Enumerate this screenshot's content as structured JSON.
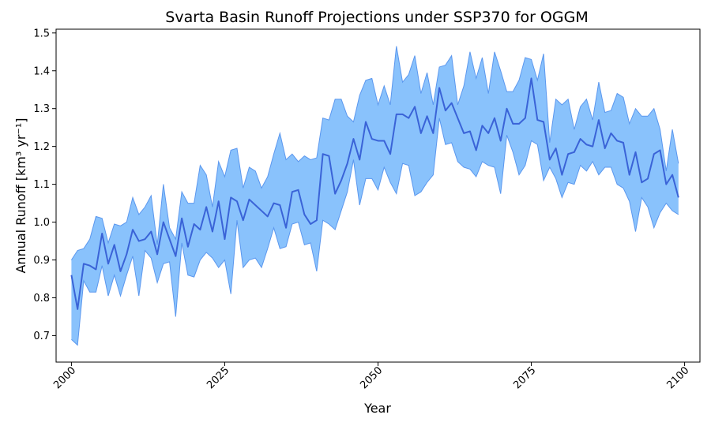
{
  "chart_data": {
    "type": "line",
    "title": "Svarta Basin Runoff Projections under SSP370 for OGGM",
    "xlabel": "Year",
    "ylabel": "Annual Runoff [km³ yr⁻¹]",
    "xlim": [
      1997.5,
      2102.5
    ],
    "ylim": [
      0.63,
      1.51
    ],
    "x_ticks": [
      2000,
      2025,
      2050,
      2075,
      2100
    ],
    "y_ticks": [
      0.7,
      0.8,
      0.9,
      1.0,
      1.1,
      1.2,
      1.3,
      1.4,
      1.5
    ],
    "x_tick_labels": [
      "2000",
      "2025",
      "2050",
      "2075",
      "2100"
    ],
    "y_tick_labels": [
      "0.7",
      "0.8",
      "0.9",
      "1.0",
      "1.1",
      "1.2",
      "1.3",
      "1.4",
      "1.5"
    ],
    "grid": false,
    "legend": "none",
    "colors": {
      "band": "#89c2fc",
      "band_edge": "#5b97ee",
      "line": "#3a63d7"
    },
    "x": [
      2000,
      2001,
      2002,
      2003,
      2004,
      2005,
      2006,
      2007,
      2008,
      2009,
      2010,
      2011,
      2012,
      2013,
      2014,
      2015,
      2016,
      2017,
      2018,
      2019,
      2020,
      2021,
      2022,
      2023,
      2024,
      2025,
      2026,
      2027,
      2028,
      2029,
      2030,
      2031,
      2032,
      2033,
      2034,
      2035,
      2036,
      2037,
      2038,
      2039,
      2040,
      2041,
      2042,
      2043,
      2044,
      2045,
      2046,
      2047,
      2048,
      2049,
      2050,
      2051,
      2052,
      2053,
      2054,
      2055,
      2056,
      2057,
      2058,
      2059,
      2060,
      2061,
      2062,
      2063,
      2064,
      2065,
      2066,
      2067,
      2068,
      2069,
      2070,
      2071,
      2072,
      2073,
      2074,
      2075,
      2076,
      2077,
      2078,
      2079,
      2080,
      2081,
      2082,
      2083,
      2084,
      2085,
      2086,
      2087,
      2088,
      2089,
      2090,
      2091,
      2092,
      2093,
      2094,
      2095,
      2096,
      2097,
      2098,
      2099
    ],
    "series": [
      {
        "name": "",
        "values": [
          0.86,
          0.77,
          0.89,
          0.885,
          0.875,
          0.97,
          0.89,
          0.94,
          0.87,
          0.915,
          0.98,
          0.95,
          0.955,
          0.975,
          0.915,
          1.0,
          0.955,
          0.91,
          1.01,
          0.935,
          0.995,
          0.98,
          1.04,
          0.975,
          1.055,
          0.955,
          1.065,
          1.055,
          1.005,
          1.06,
          1.045,
          1.03,
          1.015,
          1.05,
          1.045,
          0.985,
          1.08,
          1.085,
          1.02,
          0.995,
          1.005,
          1.18,
          1.175,
          1.075,
          1.11,
          1.155,
          1.22,
          1.165,
          1.265,
          1.22,
          1.215,
          1.215,
          1.18,
          1.285,
          1.285,
          1.275,
          1.305,
          1.235,
          1.28,
          1.235,
          1.355,
          1.295,
          1.315,
          1.275,
          1.235,
          1.24,
          1.19,
          1.255,
          1.235,
          1.275,
          1.215,
          1.3,
          1.26,
          1.26,
          1.275,
          1.38,
          1.27,
          1.265,
          1.165,
          1.195,
          1.125,
          1.18,
          1.185,
          1.22,
          1.205,
          1.2,
          1.27,
          1.195,
          1.235,
          1.215,
          1.21,
          1.125,
          1.185,
          1.105,
          1.115,
          1.18,
          1.19,
          1.1,
          1.125,
          1.065
        ]
      }
    ],
    "lower": [
      0.69,
      0.675,
      0.845,
      0.815,
      0.815,
      0.885,
      0.805,
      0.86,
      0.805,
      0.86,
      0.91,
      0.805,
      0.925,
      0.905,
      0.84,
      0.89,
      0.895,
      0.75,
      0.945,
      0.86,
      0.855,
      0.9,
      0.92,
      0.905,
      0.88,
      0.9,
      0.81,
      1.005,
      0.88,
      0.9,
      0.905,
      0.88,
      0.93,
      0.985,
      0.93,
      0.935,
      0.995,
      1.0,
      0.94,
      0.945,
      0.87,
      1.005,
      0.995,
      0.98,
      1.03,
      1.08,
      1.165,
      1.045,
      1.115,
      1.115,
      1.085,
      1.145,
      1.105,
      1.075,
      1.155,
      1.15,
      1.07,
      1.08,
      1.105,
      1.125,
      1.275,
      1.205,
      1.21,
      1.16,
      1.145,
      1.14,
      1.12,
      1.16,
      1.15,
      1.145,
      1.075,
      1.23,
      1.185,
      1.125,
      1.15,
      1.215,
      1.205,
      1.11,
      1.145,
      1.115,
      1.065,
      1.105,
      1.1,
      1.15,
      1.135,
      1.16,
      1.125,
      1.145,
      1.145,
      1.1,
      1.09,
      1.055,
      0.975,
      1.065,
      1.04,
      0.985,
      1.025,
      1.05,
      1.03,
      1.02
    ],
    "upper": [
      0.9,
      0.925,
      0.93,
      0.955,
      1.015,
      1.01,
      0.945,
      0.995,
      0.99,
      1.0,
      1.065,
      1.02,
      1.04,
      1.07,
      0.94,
      1.1,
      0.985,
      0.955,
      1.08,
      1.05,
      1.05,
      1.15,
      1.125,
      1.04,
      1.16,
      1.12,
      1.19,
      1.195,
      1.09,
      1.145,
      1.135,
      1.09,
      1.12,
      1.18,
      1.235,
      1.165,
      1.18,
      1.16,
      1.175,
      1.165,
      1.17,
      1.275,
      1.27,
      1.325,
      1.325,
      1.28,
      1.265,
      1.335,
      1.375,
      1.38,
      1.31,
      1.36,
      1.31,
      1.465,
      1.37,
      1.39,
      1.44,
      1.34,
      1.395,
      1.31,
      1.41,
      1.415,
      1.44,
      1.31,
      1.36,
      1.45,
      1.38,
      1.435,
      1.34,
      1.45,
      1.4,
      1.345,
      1.345,
      1.375,
      1.435,
      1.43,
      1.375,
      1.445,
      1.21,
      1.325,
      1.31,
      1.325,
      1.245,
      1.305,
      1.325,
      1.27,
      1.37,
      1.29,
      1.295,
      1.34,
      1.33,
      1.26,
      1.3,
      1.28,
      1.28,
      1.3,
      1.245,
      1.135,
      1.245,
      1.155
    ]
  }
}
